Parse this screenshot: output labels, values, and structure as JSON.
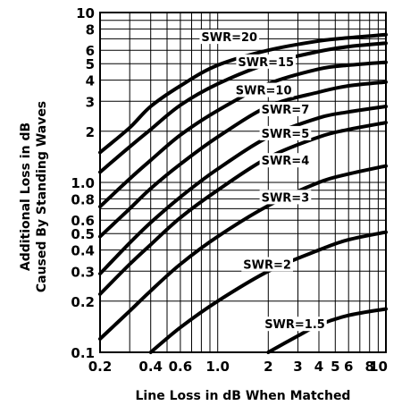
{
  "chart_data": {
    "type": "line",
    "title": "",
    "xlabel": "Line Loss in dB When Matched",
    "ylabel_line1": "Additional Loss in dB",
    "ylabel_line2": "Caused By Standing Waves",
    "x_scale": "log",
    "y_scale": "log",
    "xlim": [
      0.2,
      10
    ],
    "ylim": [
      0.1,
      10
    ],
    "grid": true,
    "x_ticks": [
      {
        "value": 0.2,
        "label": "0.2"
      },
      {
        "value": 0.4,
        "label": "0.4"
      },
      {
        "value": 0.6,
        "label": "0.6"
      },
      {
        "value": 1.0,
        "label": "1.0"
      },
      {
        "value": 2,
        "label": "2"
      },
      {
        "value": 3,
        "label": "3"
      },
      {
        "value": 4,
        "label": "4"
      },
      {
        "value": 5,
        "label": "5"
      },
      {
        "value": 6,
        "label": "6"
      },
      {
        "value": 8,
        "label": "8"
      },
      {
        "value": 10,
        "label": "10"
      }
    ],
    "x_minor_grid": [
      0.3,
      0.5,
      0.7,
      0.8,
      0.9,
      7,
      9
    ],
    "y_ticks": [
      {
        "value": 0.1,
        "label": "0.1"
      },
      {
        "value": 0.2,
        "label": "0.2"
      },
      {
        "value": 0.3,
        "label": "0.3"
      },
      {
        "value": 0.4,
        "label": "0.4"
      },
      {
        "value": 0.5,
        "label": "0.5"
      },
      {
        "value": 0.6,
        "label": "0.6"
      },
      {
        "value": 0.8,
        "label": "0.8"
      },
      {
        "value": 1.0,
        "label": "1.0"
      },
      {
        "value": 2,
        "label": "2"
      },
      {
        "value": 3,
        "label": "3"
      },
      {
        "value": 4,
        "label": "4"
      },
      {
        "value": 5,
        "label": "5"
      },
      {
        "value": 6,
        "label": "6"
      },
      {
        "value": 8,
        "label": "8"
      },
      {
        "value": 10,
        "label": "10"
      }
    ],
    "y_minor_grid": [
      0.7,
      0.9,
      7,
      9
    ],
    "series": [
      {
        "name": "SWR=20",
        "points": [
          [
            0.2,
            1.5
          ],
          [
            0.3,
            2.1
          ],
          [
            0.4,
            2.8
          ],
          [
            0.6,
            3.7
          ],
          [
            1.0,
            4.9
          ],
          [
            2,
            6.0
          ],
          [
            4,
            6.8
          ],
          [
            6,
            7.1
          ],
          [
            10,
            7.4
          ]
        ],
        "label_at": [
          0.8,
          7.2
        ],
        "label_anchor": "start"
      },
      {
        "name": "SWR=15",
        "points": [
          [
            0.2,
            1.15
          ],
          [
            0.3,
            1.62
          ],
          [
            0.4,
            2.05
          ],
          [
            0.6,
            2.85
          ],
          [
            1.0,
            3.8
          ],
          [
            2,
            5.0
          ],
          [
            4,
            5.9
          ],
          [
            6,
            6.3
          ],
          [
            10,
            6.6
          ]
        ],
        "label_at": [
          1.32,
          5.15
        ],
        "label_anchor": "start"
      },
      {
        "name": "SWR=10",
        "points": [
          [
            0.2,
            0.72
          ],
          [
            0.3,
            1.05
          ],
          [
            0.4,
            1.35
          ],
          [
            0.6,
            1.9
          ],
          [
            1.0,
            2.65
          ],
          [
            2,
            3.8
          ],
          [
            4,
            4.65
          ],
          [
            6,
            4.9
          ],
          [
            10,
            5.1
          ]
        ],
        "label_at": [
          1.28,
          3.5
        ],
        "label_anchor": "start"
      },
      {
        "name": "SWR=7",
        "points": [
          [
            0.2,
            0.48
          ],
          [
            0.3,
            0.7
          ],
          [
            0.4,
            0.92
          ],
          [
            0.6,
            1.28
          ],
          [
            1.0,
            1.85
          ],
          [
            2,
            2.8
          ],
          [
            4,
            3.4
          ],
          [
            6,
            3.7
          ],
          [
            10,
            3.9
          ]
        ],
        "label_at": [
          1.82,
          2.7
        ],
        "label_anchor": "start"
      },
      {
        "name": "SWR=5",
        "points": [
          [
            0.2,
            0.29
          ],
          [
            0.3,
            0.44
          ],
          [
            0.4,
            0.58
          ],
          [
            0.6,
            0.82
          ],
          [
            1.0,
            1.2
          ],
          [
            2,
            1.85
          ],
          [
            4,
            2.4
          ],
          [
            6,
            2.6
          ],
          [
            10,
            2.8
          ]
        ],
        "label_at": [
          1.82,
          1.95
        ],
        "label_anchor": "start"
      },
      {
        "name": "SWR=4",
        "points": [
          [
            0.2,
            0.22
          ],
          [
            0.3,
            0.33
          ],
          [
            0.4,
            0.43
          ],
          [
            0.6,
            0.62
          ],
          [
            1.0,
            0.9
          ],
          [
            2,
            1.4
          ],
          [
            4,
            1.85
          ],
          [
            6,
            2.05
          ],
          [
            10,
            2.25
          ]
        ],
        "label_at": [
          1.82,
          1.35
        ],
        "label_anchor": "start"
      },
      {
        "name": "SWR=3",
        "points": [
          [
            0.2,
            0.12
          ],
          [
            0.3,
            0.175
          ],
          [
            0.4,
            0.23
          ],
          [
            0.6,
            0.33
          ],
          [
            1.0,
            0.48
          ],
          [
            2,
            0.73
          ],
          [
            4,
            1.0
          ],
          [
            6,
            1.12
          ],
          [
            10,
            1.25
          ]
        ],
        "label_at": [
          1.82,
          0.82
        ],
        "label_anchor": "start"
      },
      {
        "name": "SWR=2",
        "points": [
          [
            0.4,
            0.1
          ],
          [
            0.6,
            0.14
          ],
          [
            1.0,
            0.2
          ],
          [
            2,
            0.3
          ],
          [
            4,
            0.4
          ],
          [
            6,
            0.46
          ],
          [
            10,
            0.51
          ]
        ],
        "label_at": [
          1.42,
          0.33
        ],
        "label_anchor": "start"
      },
      {
        "name": "SWR=1.5",
        "points": [
          [
            2,
            0.1
          ],
          [
            3,
            0.125
          ],
          [
            4,
            0.145
          ],
          [
            6,
            0.165
          ],
          [
            10,
            0.18
          ]
        ],
        "label_at": [
          1.9,
          0.147
        ],
        "label_anchor": "start"
      }
    ]
  }
}
